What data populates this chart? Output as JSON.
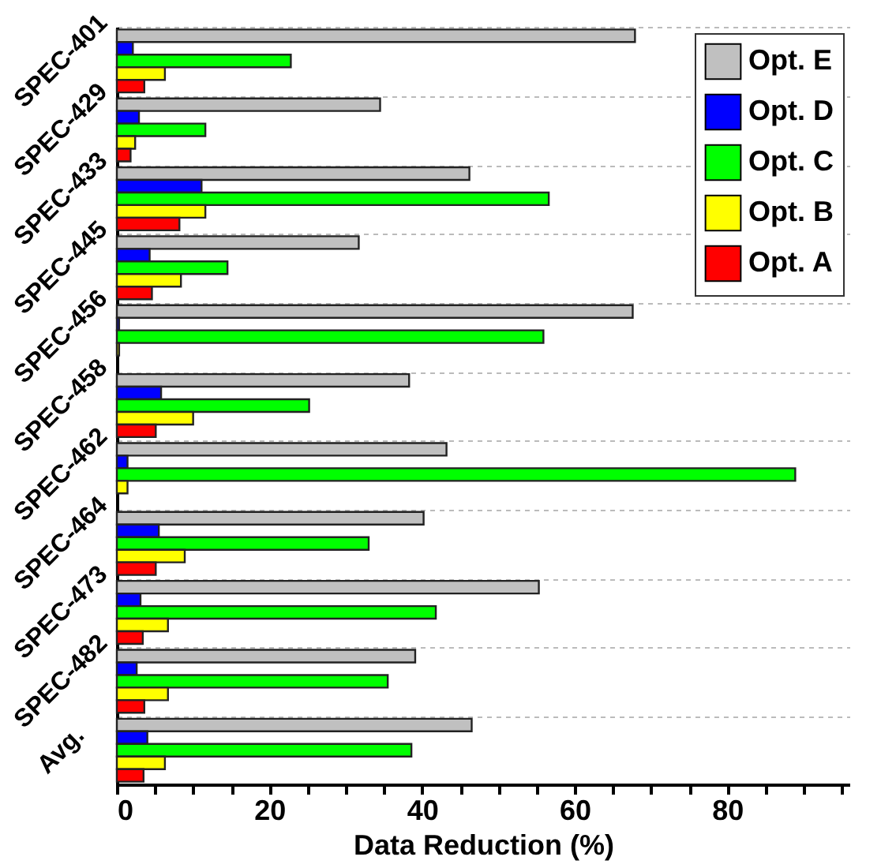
{
  "chart_data": {
    "type": "bar",
    "orientation": "horizontal",
    "xlabel": "Data Reduction (%)",
    "categories": [
      "SPEC-401",
      "SPEC-429",
      "SPEC-433",
      "SPEC-445",
      "SPEC-456",
      "SPEC-458",
      "SPEC-462",
      "SPEC-464",
      "SPEC-473",
      "SPEC-482",
      "Avg."
    ],
    "series": [
      {
        "name": "Opt. E",
        "color": "#c0c0c0",
        "values": [
          67.9,
          34.5,
          46.2,
          31.7,
          67.6,
          38.3,
          43.2,
          40.2,
          55.3,
          39.1,
          46.5
        ]
      },
      {
        "name": "Opt. D",
        "color": "#0000ff",
        "values": [
          2.1,
          2.9,
          11.1,
          4.3,
          0.3,
          5.8,
          1.4,
          5.5,
          3.1,
          2.6,
          4.0
        ]
      },
      {
        "name": "Opt. C",
        "color": "#00ff00",
        "values": [
          22.8,
          11.6,
          56.6,
          14.5,
          55.9,
          25.2,
          88.9,
          33.0,
          41.8,
          35.5,
          38.6
        ]
      },
      {
        "name": "Opt. B",
        "color": "#ffff00",
        "values": [
          6.3,
          2.4,
          11.6,
          8.4,
          0.3,
          10.0,
          1.4,
          8.9,
          6.7,
          6.7,
          6.3
        ]
      },
      {
        "name": "Opt. A",
        "color": "#ff0000",
        "values": [
          3.6,
          1.8,
          8.2,
          4.6,
          null,
          5.1,
          null,
          5.1,
          3.4,
          3.6,
          3.5
        ]
      }
    ],
    "xlim": [
      0,
      96
    ],
    "xticks": [
      0,
      {
        "value": 5,
        "label": null
      },
      {
        "value": 10,
        "label": null
      },
      {
        "value": 15,
        "label": null
      },
      20,
      {
        "value": 25,
        "label": null
      },
      {
        "value": 30,
        "label": null
      },
      {
        "value": 35,
        "label": null
      },
      40,
      {
        "value": 45,
        "label": null
      },
      {
        "value": 50,
        "label": null
      },
      {
        "value": 55,
        "label": null
      },
      60,
      {
        "value": 65,
        "label": null
      },
      {
        "value": 70,
        "label": null
      },
      {
        "value": 75,
        "label": null
      },
      80,
      {
        "value": 85,
        "label": null
      },
      {
        "value": 90,
        "label": null
      },
      {
        "value": 95,
        "label": null
      }
    ],
    "grid": "y",
    "legend": "top right"
  }
}
